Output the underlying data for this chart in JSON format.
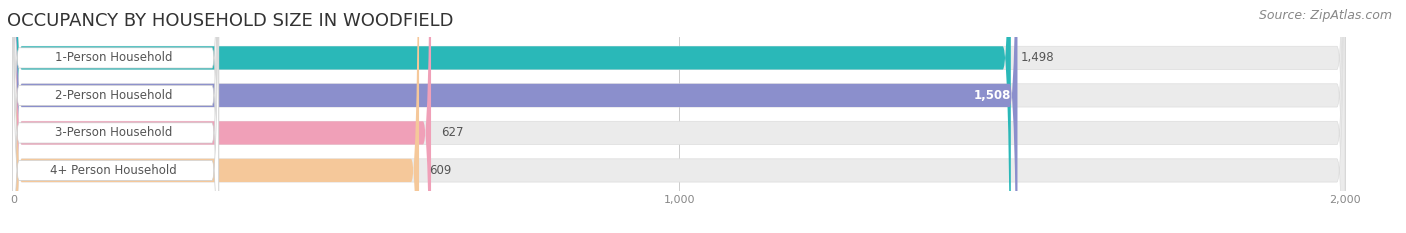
{
  "title": "OCCUPANCY BY HOUSEHOLD SIZE IN WOODFIELD",
  "source": "Source: ZipAtlas.com",
  "categories": [
    "1-Person Household",
    "2-Person Household",
    "3-Person Household",
    "4+ Person Household"
  ],
  "values": [
    1498,
    1508,
    627,
    609
  ],
  "bar_colors": [
    "#2ab8b8",
    "#8b8fcc",
    "#f0a0b8",
    "#f5c89a"
  ],
  "bar_bg_colors": [
    "#ebebeb",
    "#ebebeb",
    "#ebebeb",
    "#ebebeb"
  ],
  "xlim": [
    0,
    2000
  ],
  "xticks": [
    0,
    1000,
    2000
  ],
  "title_fontsize": 13,
  "source_fontsize": 9,
  "label_fontsize": 8.5,
  "value_fontsize": 8.5,
  "background_color": "#ffffff",
  "label_bg_color": "#ffffff",
  "label_text_color": "#555555"
}
